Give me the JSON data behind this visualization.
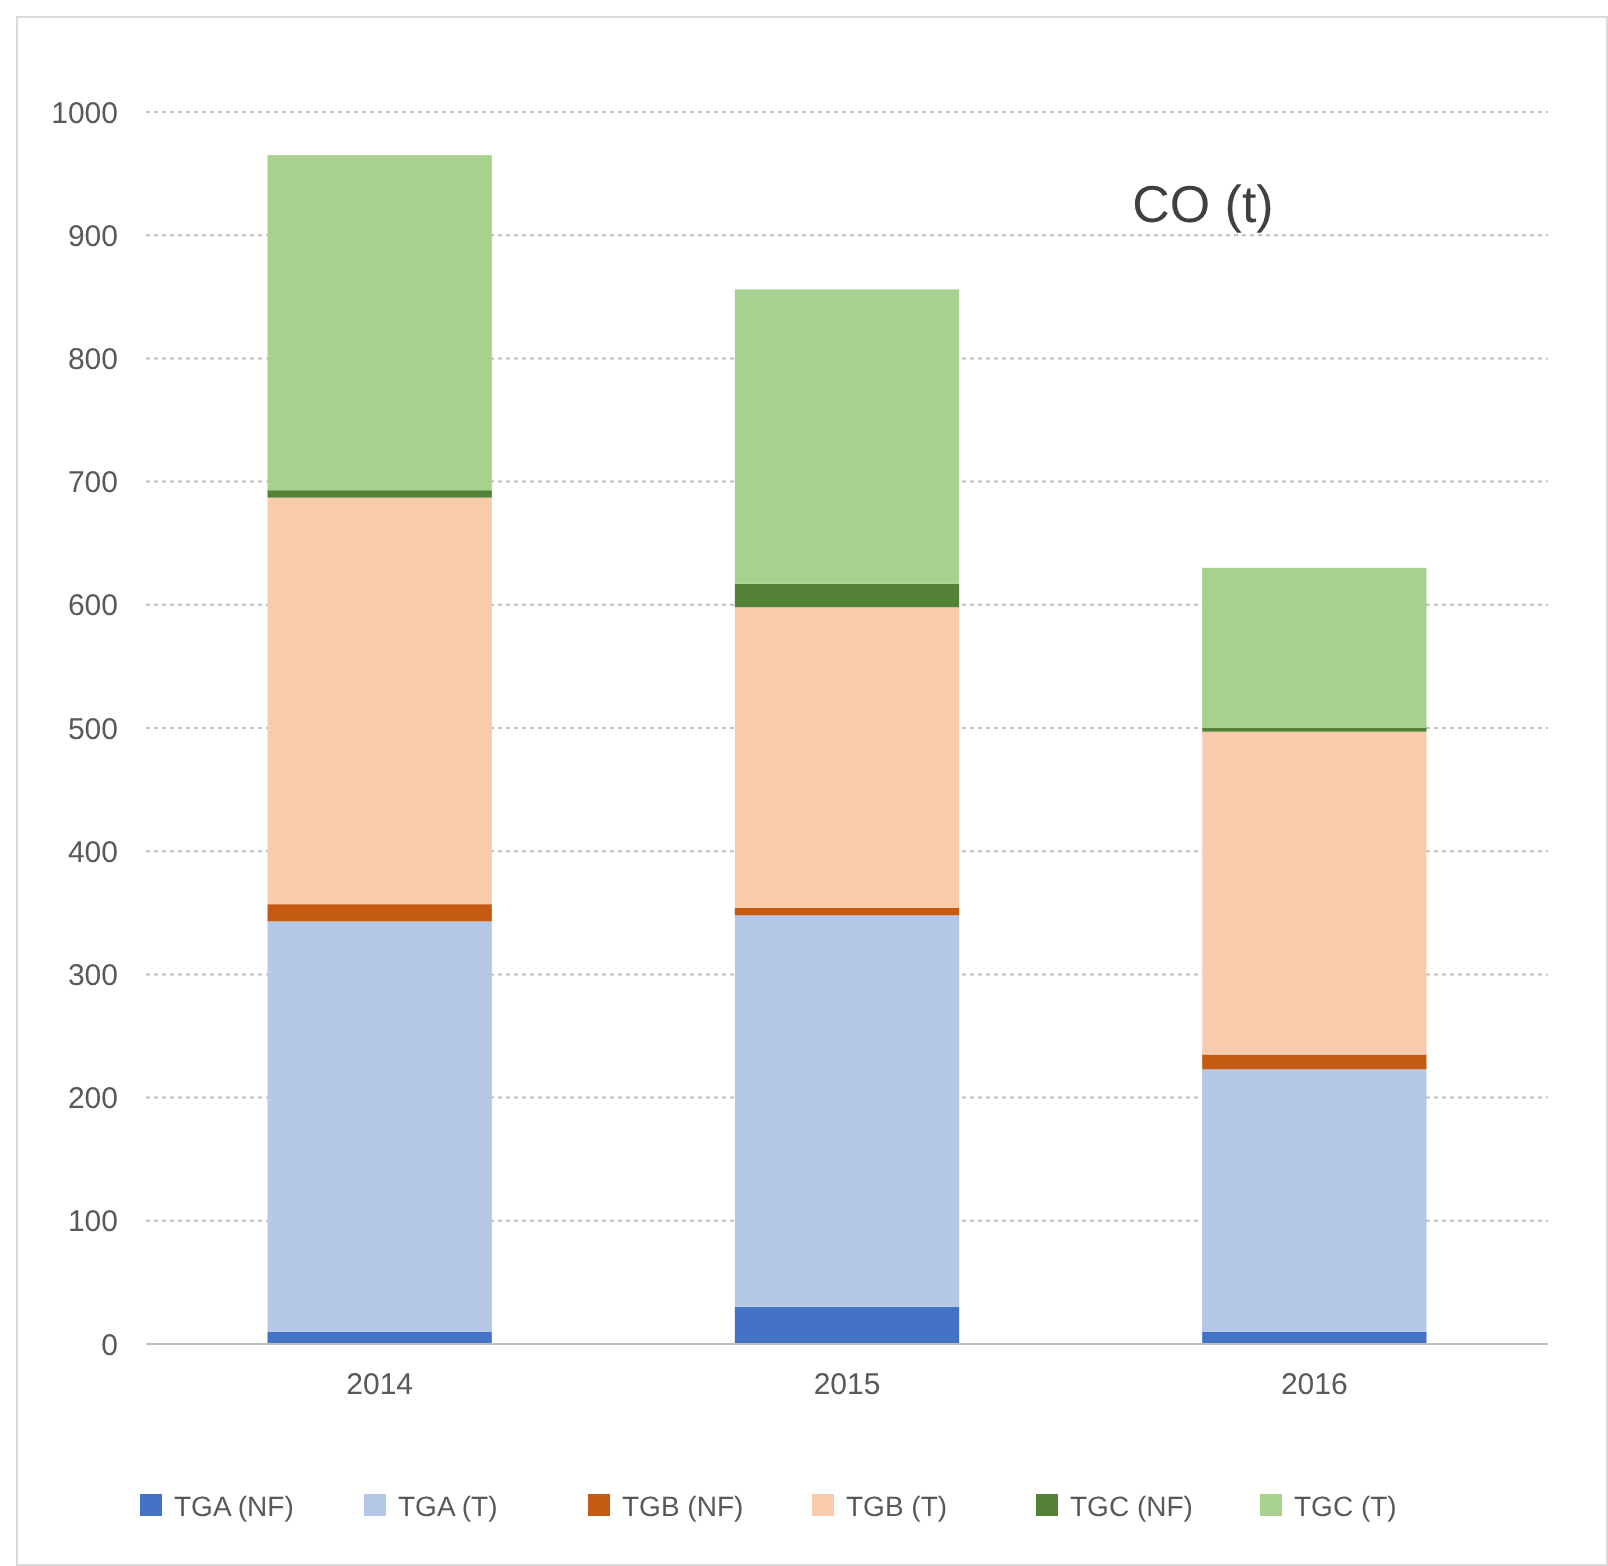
{
  "chart_data": {
    "type": "bar",
    "title": "CO (t)",
    "stacked": true,
    "categories": [
      "2014",
      "2015",
      "2016"
    ],
    "series": [
      {
        "name": "TGA (NF)",
        "color": "#4472c4",
        "values": [
          10,
          30,
          10
        ]
      },
      {
        "name": "TGA (T)",
        "color": "#b4c7e7",
        "values": [
          333,
          318,
          213
        ]
      },
      {
        "name": "TGB (NF)",
        "color": "#c55a11",
        "values": [
          14,
          6,
          12
        ]
      },
      {
        "name": "TGB (T)",
        "color": "#f8cbad",
        "values": [
          330,
          244,
          262
        ]
      },
      {
        "name": "TGC (NF)",
        "color": "#538135",
        "values": [
          6,
          19,
          3
        ]
      },
      {
        "name": "TGC (T)",
        "color": "#a9d18e",
        "values": [
          272,
          239,
          130
        ]
      }
    ],
    "ylim": [
      0,
      1000
    ],
    "yticks": [
      0,
      100,
      200,
      300,
      400,
      500,
      600,
      700,
      800,
      900,
      1000
    ],
    "grid": "y",
    "legend": "bottom"
  }
}
